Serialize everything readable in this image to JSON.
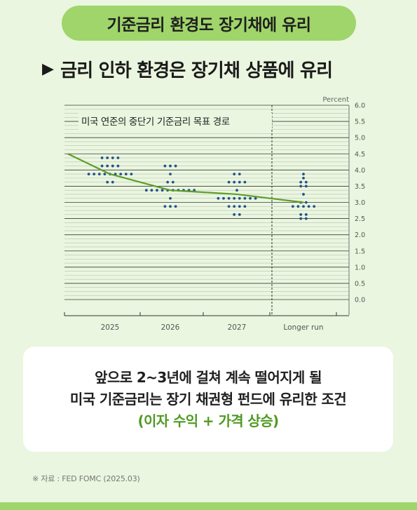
{
  "title_pill": "기준금리 환경도 장기채에 유리",
  "subtitle": {
    "marker": "▶",
    "text": "금리 인하 환경은 장기채 상품에 유리"
  },
  "chart_data": {
    "type": "scatter",
    "title": "미국 연준의 중단기 기준금리 목표 경로",
    "ylabel": "Percent",
    "ylim": [
      0,
      6.0
    ],
    "yticks": [
      "0.0",
      "0.5",
      "1.0",
      "1.5",
      "2.0",
      "2.5",
      "3.0",
      "3.5",
      "4.0",
      "4.5",
      "5.0",
      "5.5",
      "6.0"
    ],
    "categories": [
      "2025",
      "2026",
      "2027",
      "Longer run"
    ],
    "dots": [
      [
        {
          "y": 4.375,
          "n": 4
        },
        {
          "y": 4.125,
          "n": 4
        },
        {
          "y": 3.875,
          "n": 9
        },
        {
          "y": 3.625,
          "n": 2
        }
      ],
      [
        {
          "y": 4.125,
          "n": 3
        },
        {
          "y": 3.875,
          "n": 1
        },
        {
          "y": 3.625,
          "n": 2
        },
        {
          "y": 3.375,
          "n": 10
        },
        {
          "y": 3.125,
          "n": 1
        },
        {
          "y": 2.875,
          "n": 3
        }
      ],
      [
        {
          "y": 3.875,
          "n": 2
        },
        {
          "y": 3.625,
          "n": 4
        },
        {
          "y": 3.375,
          "n": 1
        },
        {
          "y": 3.125,
          "n": 8
        },
        {
          "y": 2.875,
          "n": 4
        },
        {
          "y": 2.625,
          "n": 2
        }
      ],
      [
        {
          "y": 3.875,
          "n": 1
        },
        {
          "y": 3.75,
          "n": 1
        },
        {
          "y": 3.625,
          "n": 2
        },
        {
          "y": 3.5,
          "n": 2
        },
        {
          "y": 3.25,
          "n": 1
        },
        {
          "y": 3.0,
          "n": 2
        },
        {
          "y": 2.875,
          "n": 5
        },
        {
          "y": 2.625,
          "n": 2
        },
        {
          "y": 2.5,
          "n": 2
        }
      ]
    ],
    "median_line": {
      "x": [
        -0.7,
        0,
        1,
        2,
        3
      ],
      "values": [
        4.5,
        3.875,
        3.375,
        3.25,
        3.0
      ]
    },
    "grid": true,
    "dot_color": "#23528d",
    "line_color": "#5d9e2a"
  },
  "card": {
    "line1": "앞으로 2~3년에 걸쳐 계속 떨어지게 될",
    "line2": "미국 기준금리는 장기 채권형 펀드에 유리한 조건",
    "line3": "(이자 수익 + 가격 상승)"
  },
  "source": "※ 자료 : FED FOMC (2025.03)"
}
